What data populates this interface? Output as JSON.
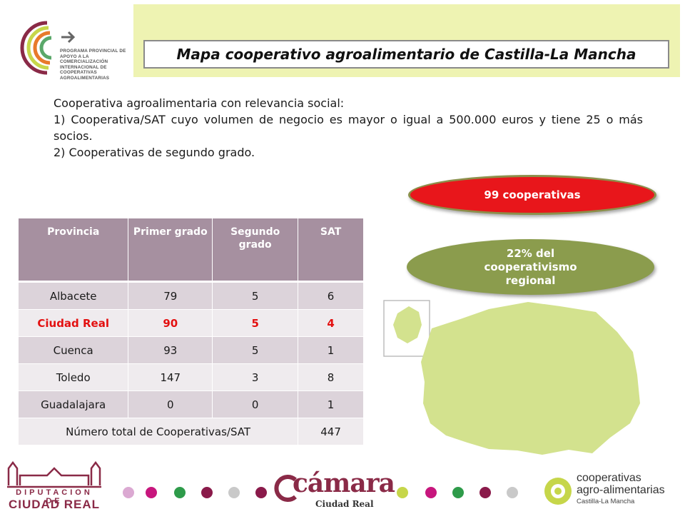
{
  "header": {
    "title": "Mapa cooperativo agroalimentario de Castilla-La Mancha",
    "logo_text": "PROGRAMA PROVINCIAL DE APOYO A LA COMERCIALIZACIÓN INTERNACIONAL DE COOPERATIVAS AGROALIMENTARIAS"
  },
  "intro": {
    "heading": "Cooperativa agroalimentaria con relevancia social:",
    "point1": "1) Cooperativa/SAT cuyo volumen de negocio es mayor o igual a 500.000 euros y tiene 25 o más socios.",
    "point2": "2) Cooperativas de segundo grado."
  },
  "badges": {
    "count": "99 cooperativas",
    "share": "22% del cooperativismo regional"
  },
  "table": {
    "headers": [
      "Provincia",
      "Primer grado",
      "Segundo grado",
      "SAT"
    ],
    "rows": [
      [
        "Albacete",
        "79",
        "5",
        "6"
      ],
      [
        "Ciudad Real",
        "90",
        "5",
        "4"
      ],
      [
        "Cuenca",
        "93",
        "5",
        "1"
      ],
      [
        "Toledo",
        "147",
        "3",
        "8"
      ],
      [
        "Guadalajara",
        "0",
        "0",
        "1"
      ]
    ],
    "highlight_row": "Ciudad Real",
    "total_label": "Número total de Cooperativas/SAT",
    "total_value": "447"
  },
  "footer": {
    "diputacion_line1": "DIPUTACION DE",
    "diputacion_line2": "CIUDAD REAL",
    "camara_word": "cámara",
    "camara_sub": "Ciudad Real",
    "coop_line1": "cooperativas",
    "coop_line2": "agro-alimentarias",
    "coop_line3": "Castilla-La Mancha"
  },
  "colors": {
    "header_band": "#eef3b2",
    "table_header": "#a690a0",
    "highlight_red": "#e31010",
    "pill_red": "#e8161b",
    "pill_green": "#8b9c4d",
    "map_green": "#d3e28e",
    "brand_burgundy": "#8a2a47"
  },
  "icons": [
    "ppi-logo-icon",
    "arrow-right-icon",
    "castilla-la-mancha-map",
    "diputacion-building-icon",
    "camara-logo-icon",
    "cooperativas-logo-icon"
  ]
}
